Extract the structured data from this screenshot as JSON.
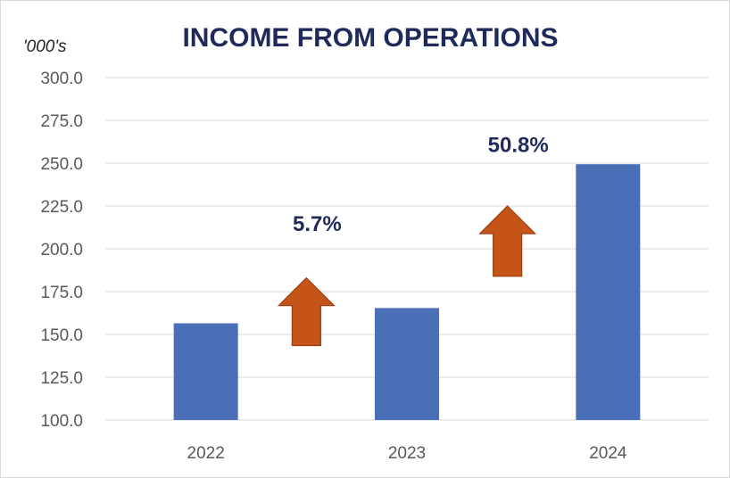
{
  "chart_data": {
    "type": "bar",
    "title": "INCOME FROM OPERATIONS",
    "unit_label": "'000's",
    "categories": [
      "2022",
      "2023",
      "2024"
    ],
    "values": [
      156.5,
      165.4,
      249.4
    ],
    "ylim": [
      100,
      300
    ],
    "yticks": [
      "100.0",
      "125.0",
      "150.0",
      "175.0",
      "200.0",
      "225.0",
      "250.0",
      "275.0",
      "300.0"
    ],
    "grid": true,
    "colors": {
      "bar": "#4a6fb7",
      "arrow": "#c55418",
      "title": "#1f2a5a"
    },
    "annotations": [
      {
        "text": "5.7%",
        "icon": "up-arrow-icon",
        "between": [
          "2022",
          "2023"
        ]
      },
      {
        "text": "50.8%",
        "icon": "up-arrow-icon",
        "between": [
          "2023",
          "2024"
        ]
      }
    ]
  }
}
